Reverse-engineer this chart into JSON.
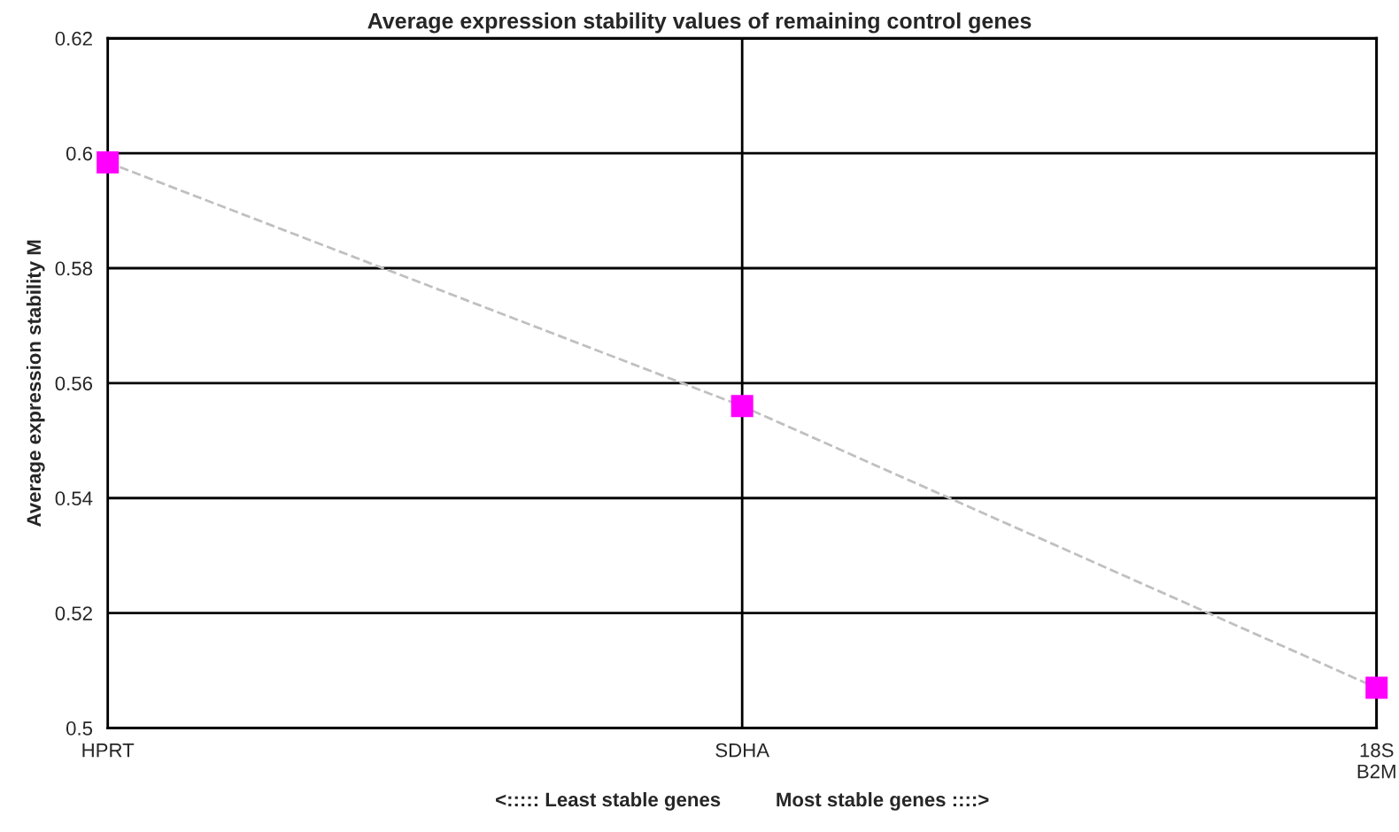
{
  "chart_data": {
    "type": "line",
    "title": "Average expression stability values of remaining control genes",
    "xlabel": "<::::: Least stable genes          Most stable genes ::::>",
    "ylabel": "Average expression stability M",
    "categories": [
      "HPRT",
      "SDHA",
      "18S\nB2M"
    ],
    "series": [
      {
        "color": "#ff00ff",
        "values": [
          0.5984,
          0.556,
          0.507
        ]
      }
    ],
    "ylim": [
      0.5,
      0.62
    ],
    "yticks": [
      0.5,
      0.52,
      0.54,
      0.56,
      0.58,
      0.6,
      0.62
    ],
    "grid": true,
    "marker": "square",
    "line_style": "dashed"
  }
}
